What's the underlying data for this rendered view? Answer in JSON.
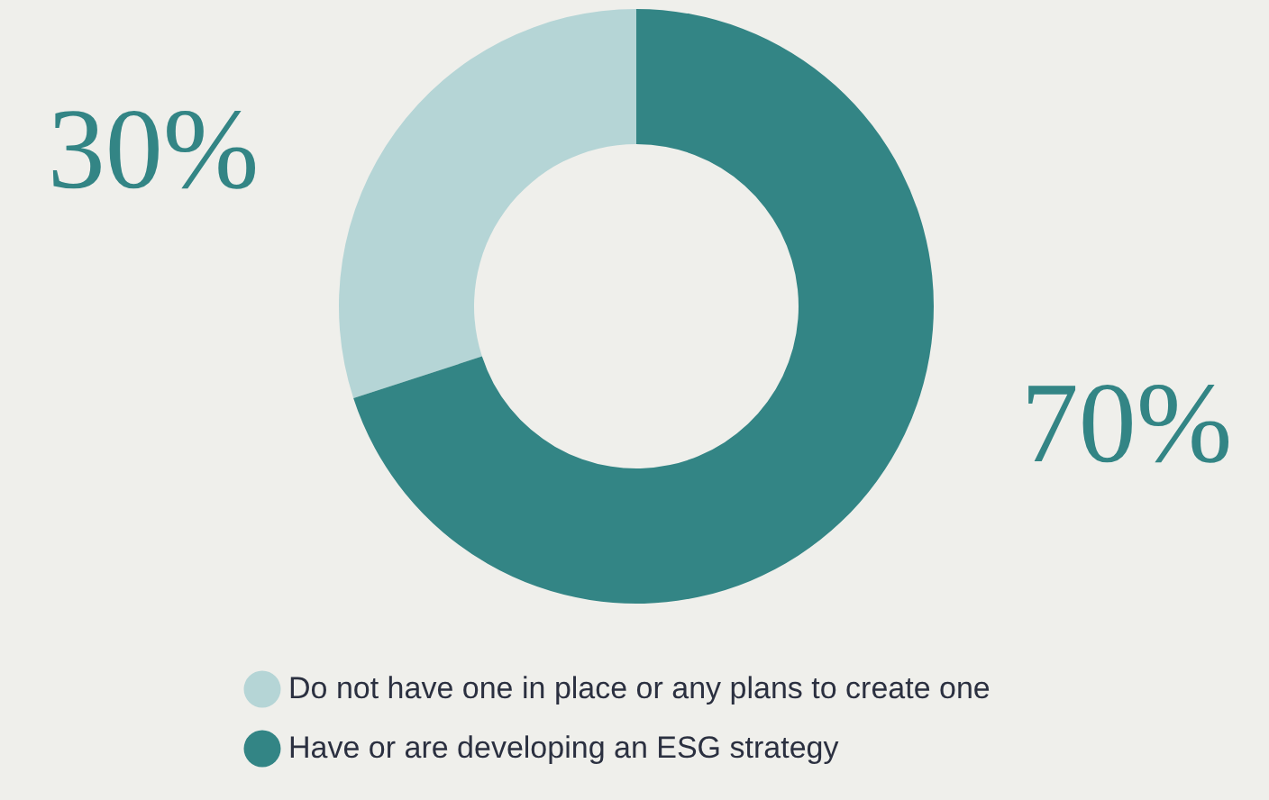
{
  "chart_data": {
    "type": "donut",
    "categories": [
      "Do not have one in place or any plans to create one",
      "Have or are developing an ESG strategy"
    ],
    "values": [
      30,
      70
    ],
    "colors": [
      "#b5d5d6",
      "#338585"
    ],
    "value_labels": [
      "30%",
      "70%"
    ],
    "legend": "bottom"
  }
}
